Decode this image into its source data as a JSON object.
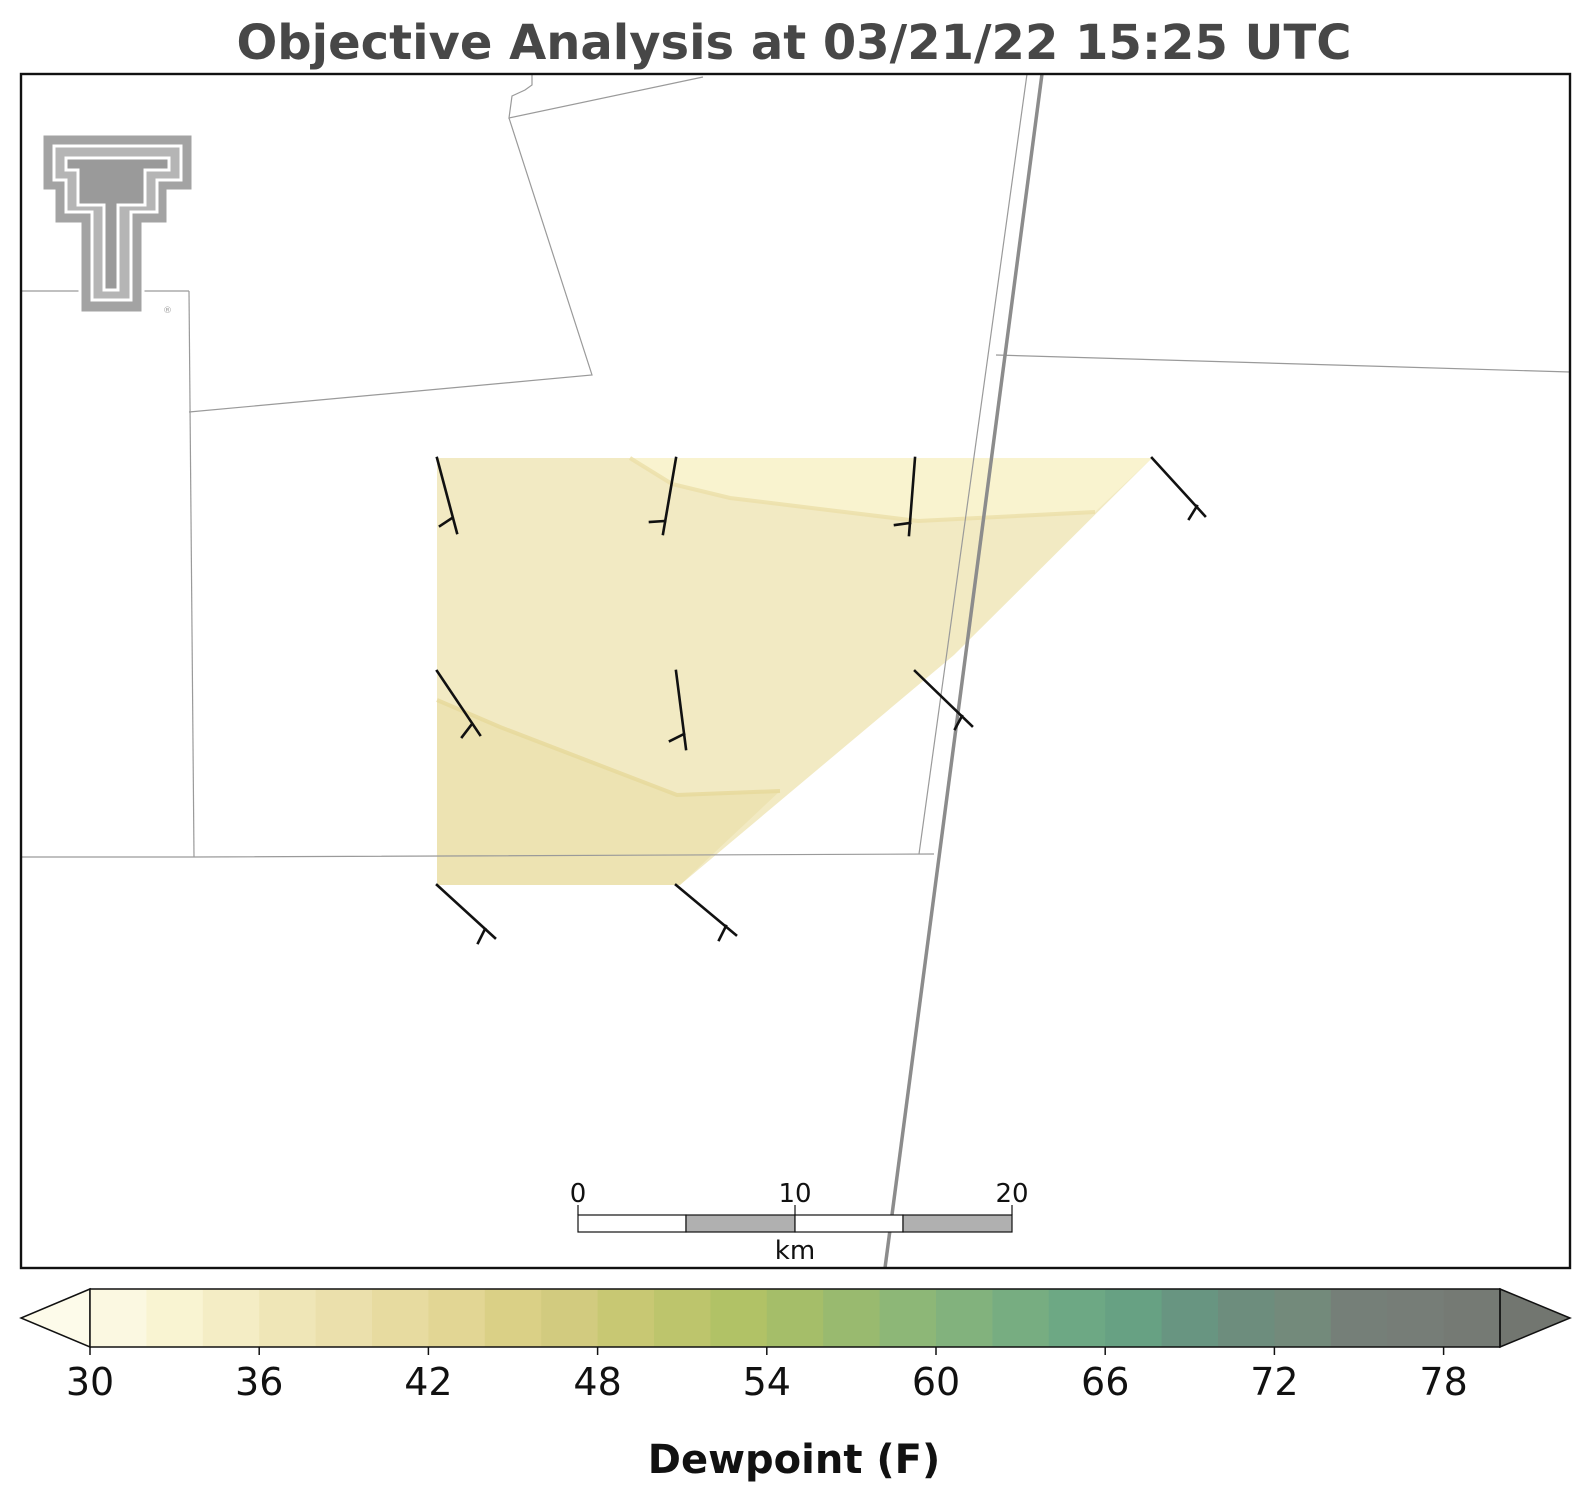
{
  "title": "Objective Analysis at 03/21/22 15:25 UTC",
  "logo": {
    "name": "texas-tech-double-t-logo",
    "color": "#a3a3a3",
    "mark": "®"
  },
  "map": {
    "field": "Dewpoint",
    "unit": "F",
    "boundary_color": "#9a9a9a",
    "highway_color": "#8c8c8c",
    "contour_bands": [
      {
        "range": [
          32,
          34
        ],
        "color": "#f9f3cf"
      },
      {
        "range": [
          34,
          36
        ],
        "color": "#f2eac3"
      },
      {
        "range": [
          36,
          38
        ],
        "color": "#ede3b2"
      }
    ],
    "wind_barbs": [
      {
        "station": 1,
        "u_dir": "north-northwest",
        "flag": "half-barb"
      },
      {
        "station": 2,
        "u_dir": "north",
        "flag": "half-barb"
      },
      {
        "station": 3,
        "u_dir": "north",
        "flag": "half-barb"
      },
      {
        "station": 4,
        "u_dir": "northwest",
        "flag": "half-barb"
      },
      {
        "station": 5,
        "u_dir": "northwest",
        "flag": "half-barb"
      },
      {
        "station": 6,
        "u_dir": "north",
        "flag": "half-barb"
      },
      {
        "station": 7,
        "u_dir": "northwest",
        "flag": "half-barb"
      },
      {
        "station": 8,
        "u_dir": "northwest",
        "flag": "half-barb"
      },
      {
        "station": 9,
        "u_dir": "northwest",
        "flag": "half-barb"
      }
    ]
  },
  "scale_bar": {
    "labels": [
      "0",
      "10",
      "20"
    ],
    "unit": "km",
    "segment_colors": [
      "#ffffff",
      "#b0b0b0",
      "#ffffff",
      "#b0b0b0"
    ]
  },
  "colorbar": {
    "label": "Dewpoint (F)",
    "ticks": [
      "30",
      "36",
      "42",
      "48",
      "54",
      "60",
      "66",
      "72",
      "78"
    ],
    "min": 30,
    "max": 80,
    "step": 2,
    "extend": "both",
    "colors": [
      "#fbf8e1",
      "#f9f4d2",
      "#f4edc5",
      "#efe6b7",
      "#ebe0ac",
      "#e7dba0",
      "#e2d694",
      "#dad086",
      "#d2cb7f",
      "#c8c873",
      "#bdc56c",
      "#b1c266",
      "#a5be69",
      "#99ba6f",
      "#8db777",
      "#82b27d",
      "#77ad81",
      "#6da884",
      "#67a183",
      "#689581",
      "#6d8d7d",
      "#738a7b",
      "#757f78",
      "#767d77",
      "#757a74"
    ],
    "under_color": "#fdfbea",
    "over_color": "#727670"
  }
}
